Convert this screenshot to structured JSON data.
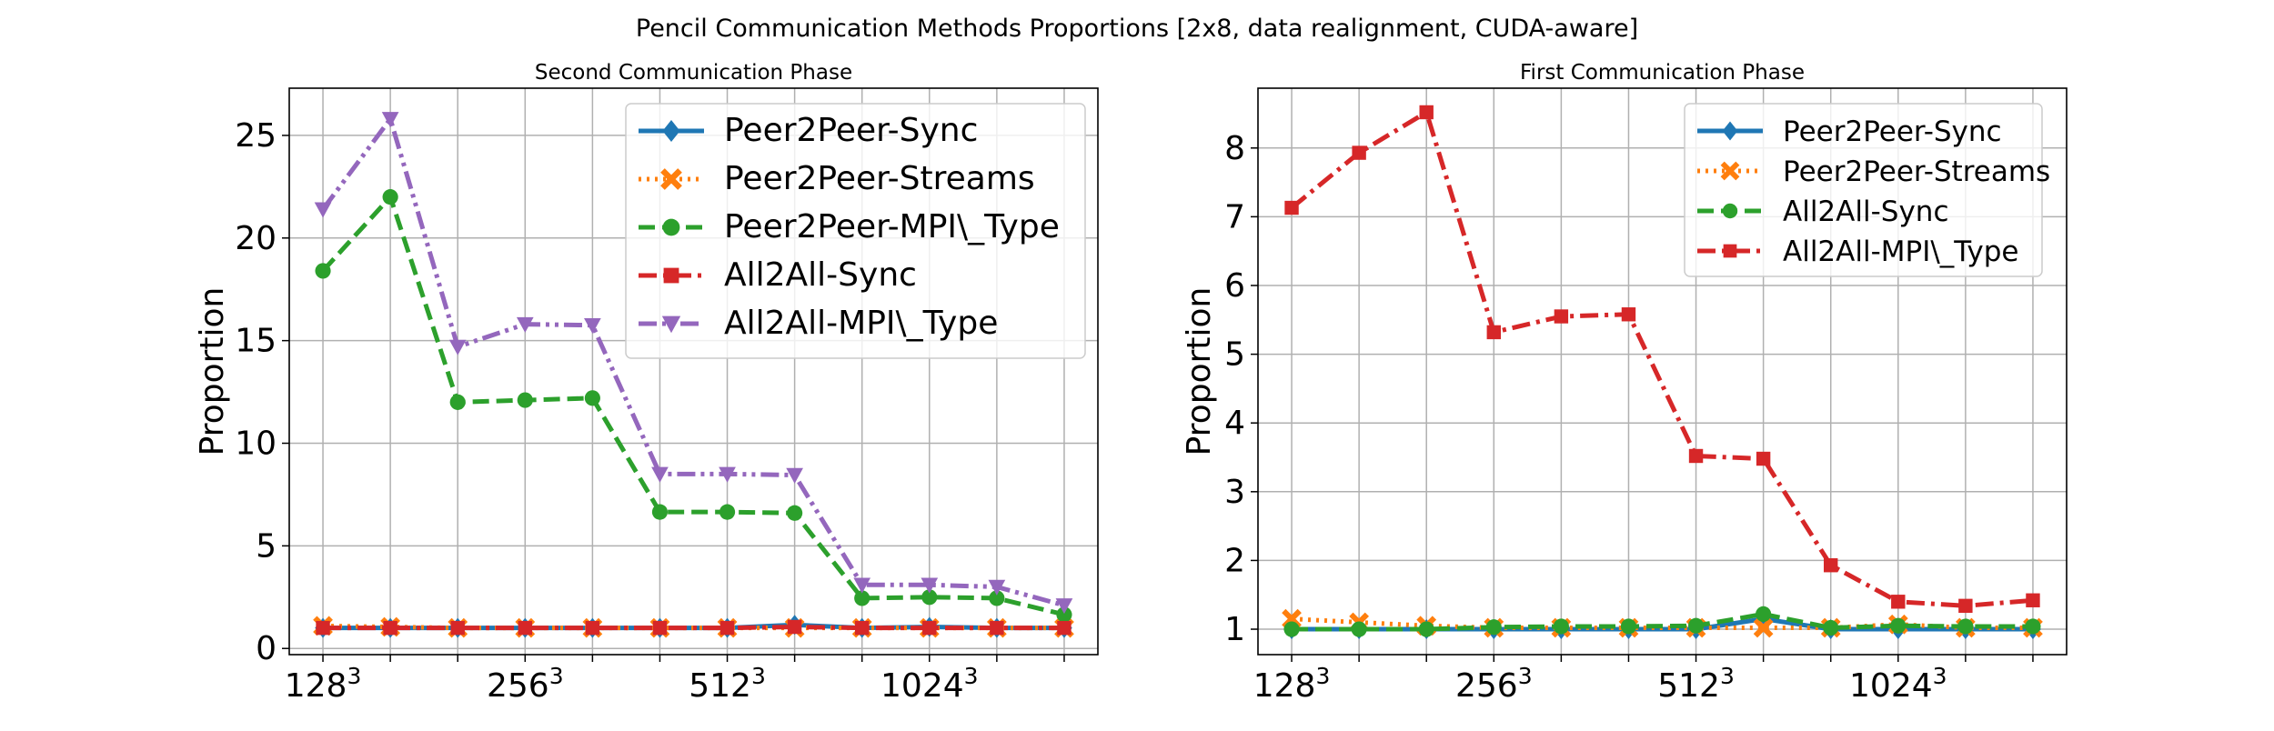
{
  "figure": {
    "title": "Pencil Communication Methods Proportions [2x8, data realignment, CUDA-aware]"
  },
  "colors": {
    "blue": "#1f77b4",
    "orange": "#ff7f0e",
    "green": "#2ca02c",
    "red": "#d62728",
    "purple": "#9467bd",
    "grid": "#b0b0b0"
  },
  "chart_data": [
    {
      "type": "line",
      "title": "Second Communication Phase",
      "ylabel": "Proportion",
      "xlabel": "",
      "x": [
        1,
        2,
        3,
        4,
        5,
        6,
        7,
        8,
        9,
        10,
        11,
        12
      ],
      "x_tick_labels": [
        {
          "pos": 1,
          "base": "128",
          "exp": "3"
        },
        {
          "pos": 4,
          "base": "256",
          "exp": "3"
        },
        {
          "pos": 7,
          "base": "512",
          "exp": "3"
        },
        {
          "pos": 10,
          "base": "1024",
          "exp": "3"
        }
      ],
      "yticks": [
        0,
        5,
        10,
        15,
        20,
        25
      ],
      "ylim": [
        -0.3,
        27.3
      ],
      "grid": true,
      "legend_position": "upper right",
      "series": [
        {
          "name": "Peer2Peer-Sync",
          "color": "#1f77b4",
          "dash": "solid",
          "marker": "diamond",
          "values": [
            1.0,
            1.0,
            1.0,
            1.0,
            1.0,
            1.0,
            1.0,
            1.15,
            1.0,
            1.05,
            1.0,
            1.0
          ]
        },
        {
          "name": "Peer2Peer-Streams",
          "color": "#ff7f0e",
          "dash": "dotted",
          "marker": "x",
          "values": [
            1.1,
            1.05,
            1.0,
            1.0,
            1.0,
            1.0,
            1.0,
            1.0,
            1.0,
            1.0,
            1.0,
            1.0
          ]
        },
        {
          "name": "Peer2Peer-MPI\\_Type",
          "color": "#2ca02c",
          "dash": "dashed",
          "marker": "circle",
          "values": [
            18.4,
            22.0,
            12.0,
            12.1,
            12.2,
            6.65,
            6.65,
            6.6,
            2.45,
            2.5,
            2.45,
            1.65
          ]
        },
        {
          "name": "All2All-Sync",
          "color": "#d62728",
          "dash": "dashdot",
          "marker": "square",
          "values": [
            1.0,
            1.0,
            1.0,
            1.0,
            1.0,
            1.0,
            1.0,
            1.05,
            1.0,
            1.0,
            1.0,
            1.0
          ]
        },
        {
          "name": "All2All-MPI\\_Type",
          "color": "#9467bd",
          "dash": "dashdotdot",
          "marker": "triangle-down",
          "values": [
            21.4,
            25.8,
            14.7,
            15.8,
            15.75,
            8.5,
            8.5,
            8.45,
            3.1,
            3.1,
            3.0,
            2.1
          ]
        }
      ]
    },
    {
      "type": "line",
      "title": "First Communication Phase",
      "ylabel": "Proportion",
      "xlabel": "",
      "x": [
        1,
        2,
        3,
        4,
        5,
        6,
        7,
        8,
        9,
        10,
        11,
        12
      ],
      "x_tick_labels": [
        {
          "pos": 1,
          "base": "128",
          "exp": "3"
        },
        {
          "pos": 4,
          "base": "256",
          "exp": "3"
        },
        {
          "pos": 7,
          "base": "512",
          "exp": "3"
        },
        {
          "pos": 10,
          "base": "1024",
          "exp": "3"
        }
      ],
      "yticks": [
        1,
        2,
        3,
        4,
        5,
        6,
        7,
        8
      ],
      "ylim": [
        0.63,
        8.87
      ],
      "grid": true,
      "legend_position": "upper right",
      "series": [
        {
          "name": "Peer2Peer-Sync",
          "color": "#1f77b4",
          "dash": "solid",
          "marker": "diamond",
          "values": [
            1.0,
            1.0,
            1.0,
            1.0,
            1.0,
            1.0,
            1.0,
            1.15,
            1.0,
            1.0,
            1.0,
            1.0
          ]
        },
        {
          "name": "Peer2Peer-Streams",
          "color": "#ff7f0e",
          "dash": "dotted",
          "marker": "x",
          "values": [
            1.15,
            1.1,
            1.05,
            1.02,
            1.02,
            1.02,
            1.02,
            1.02,
            1.02,
            1.07,
            1.02,
            1.02
          ]
        },
        {
          "name": "All2All-Sync",
          "color": "#2ca02c",
          "dash": "dashed",
          "marker": "circle",
          "values": [
            1.0,
            1.0,
            1.0,
            1.03,
            1.04,
            1.04,
            1.05,
            1.22,
            1.02,
            1.05,
            1.04,
            1.04
          ]
        },
        {
          "name": "All2All-MPI\\_Type",
          "color": "#d62728",
          "dash": "dashdot",
          "marker": "square",
          "values": [
            7.13,
            7.93,
            8.52,
            5.32,
            5.55,
            5.58,
            3.52,
            3.48,
            1.93,
            1.4,
            1.34,
            1.42
          ]
        }
      ]
    }
  ]
}
